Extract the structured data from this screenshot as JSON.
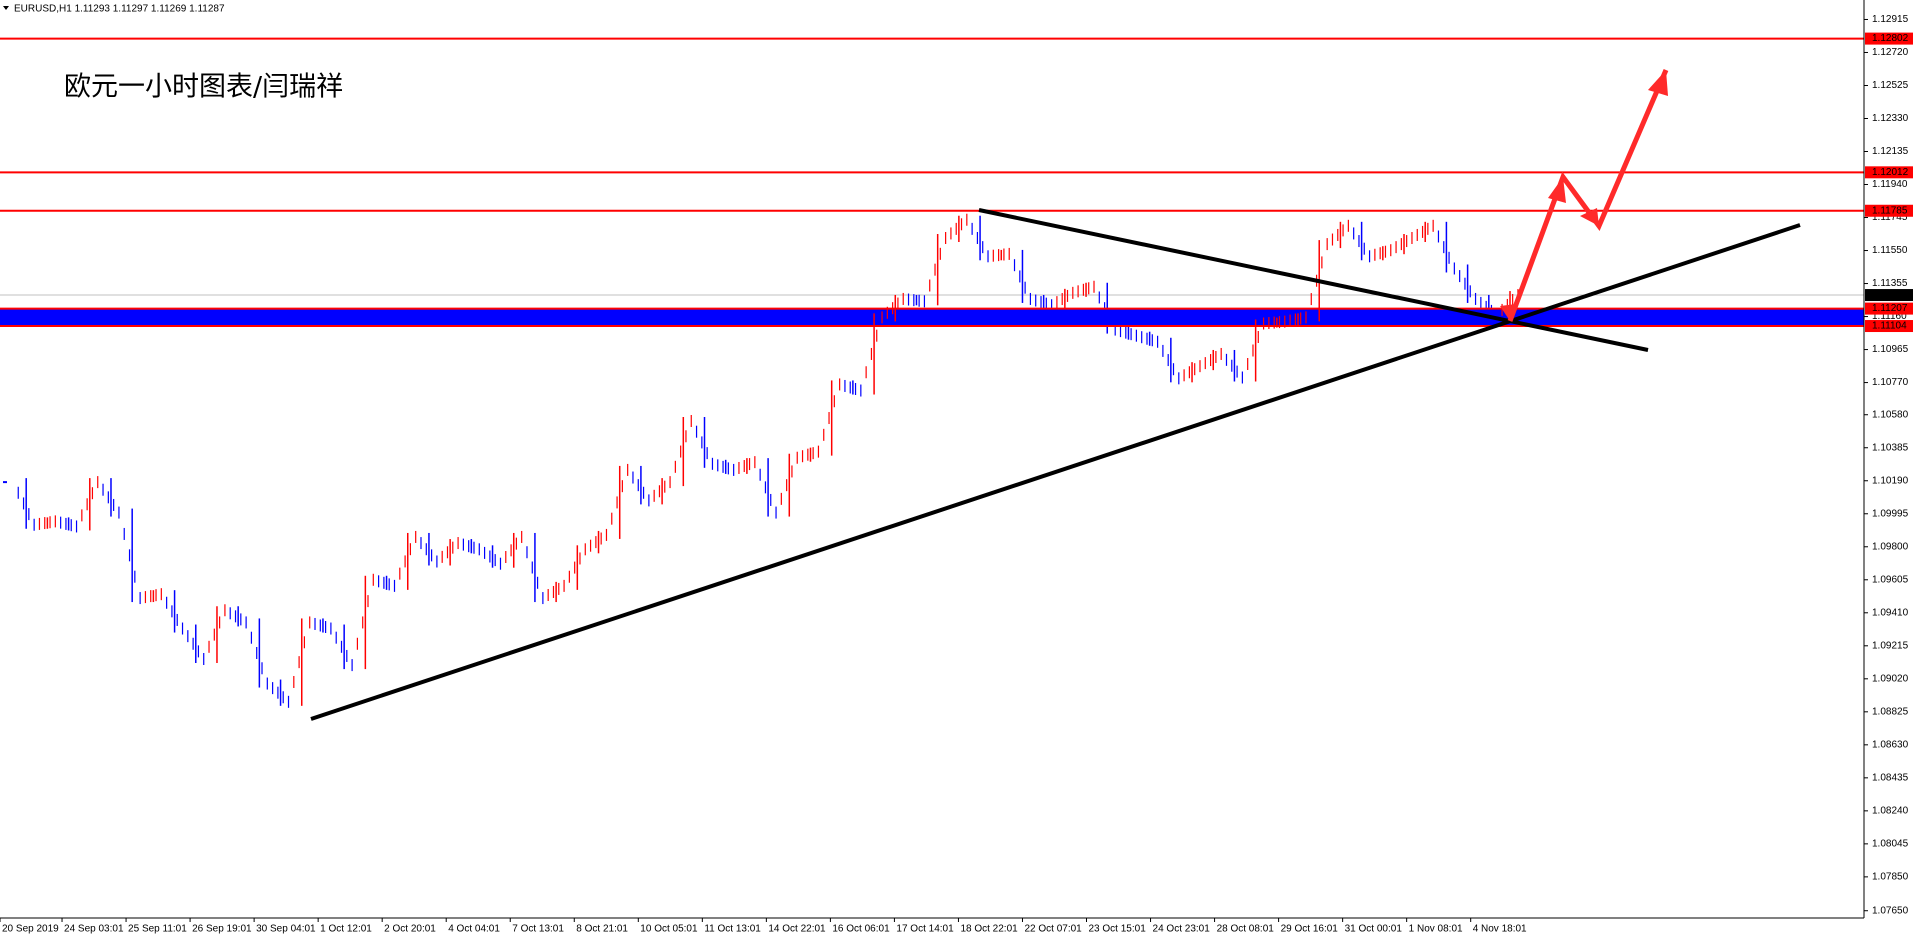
{
  "chart_data": {
    "type": "bars",
    "subtitle": "EURUSD,H1  1.11293 1.11297 1.11269 1.11287",
    "title": "欧元一小时图表/闫瑞祥",
    "x_labels": [
      "20 Sep 2019",
      "24 Sep 03:01",
      "25 Sep 11:01",
      "26 Sep 19:01",
      "30 Sep 04:01",
      "1 Oct 12:01",
      "2 Oct 20:01",
      "4 Oct 04:01",
      "7 Oct 13:01",
      "8 Oct 21:01",
      "10 Oct 05:01",
      "11 Oct 13:01",
      "14 Oct 22:01",
      "16 Oct 06:01",
      "17 Oct 14:01",
      "18 Oct 22:01",
      "22 Oct 07:01",
      "23 Oct 15:01",
      "24 Oct 23:01",
      "28 Oct 08:01",
      "29 Oct 16:01",
      "31 Oct 00:01",
      "1 Nov 08:01",
      "4 Nov 18:01"
    ],
    "values": [
      1.10182,
      1.0993,
      1.0995,
      1.0992,
      1.10182,
      1.10002,
      1.09497,
      1.0952,
      1.09317,
      1.09137,
      1.09425,
      1.09353,
      1.08992,
      1.08884,
      1.09353,
      1.09317,
      1.09101,
      1.09605,
      1.09569,
      1.09858,
      1.09713,
      1.09822,
      1.09785,
      1.097,
      1.09858,
      1.09497,
      1.09569,
      1.09785,
      1.0987,
      1.10254,
      1.10074,
      1.10182,
      1.10543,
      1.1029,
      1.10254,
      1.103,
      1.10002,
      1.10326,
      1.10362,
      1.10759,
      1.10723,
      1.11155,
      1.11264,
      1.1125,
      1.11624,
      1.11732,
      1.11516,
      1.1153,
      1.11264,
      1.11227,
      1.113,
      1.11336,
      1.11083,
      1.11047,
      1.11011,
      1.10795,
      1.10867,
      1.10939,
      1.108,
      1.11119,
      1.1113,
      1.11155,
      1.11588,
      1.11696,
      1.11516,
      1.11552,
      1.11624,
      1.11696,
      1.11444,
      1.11264,
      1.1117,
      1.11287
    ],
    "up_color": "#ff0000",
    "down_color": "#0000ff",
    "ylim": [
      1.07607,
      1.1303
    ],
    "yticks": [
      1.12915,
      {
        "value": 1.1272,
        "label": "1.12720"
      },
      1.12525,
      {
        "value": 1.1233,
        "label": "1.12330"
      },
      1.12135,
      {
        "value": 1.1194,
        "label": "1.11940"
      },
      1.11745,
      {
        "value": 1.1155,
        "label": "1.11550"
      },
      1.11355,
      {
        "value": 1.1116,
        "label": "1.11160"
      },
      1.10965,
      {
        "value": 1.1077,
        "label": "1.10770"
      },
      {
        "value": 1.1058,
        "label": "1.10580"
      },
      1.10385,
      {
        "value": 1.1019,
        "label": "1.10190"
      },
      1.09995,
      {
        "value": 1.098,
        "label": "1.09800"
      },
      1.09605,
      {
        "value": 1.0941,
        "label": "1.09410"
      },
      1.09215,
      {
        "value": 1.0902,
        "label": "1.09020"
      },
      1.08825,
      {
        "value": 1.0863,
        "label": "1.08630"
      },
      1.08435,
      {
        "value": 1.0824,
        "label": "1.08240"
      },
      1.08045,
      {
        "value": 1.0785,
        "label": "1.07850"
      },
      {
        "value": 1.0765,
        "label": "1.07650"
      }
    ],
    "levels": [
      1.12802,
      1.12012,
      1.11785,
      1.11207,
      1.11104
    ],
    "level_color": "#ff0000",
    "band": [
      1.11104,
      1.11207
    ],
    "band_color": "#0000ff",
    "current_price": 1.11287
  }
}
